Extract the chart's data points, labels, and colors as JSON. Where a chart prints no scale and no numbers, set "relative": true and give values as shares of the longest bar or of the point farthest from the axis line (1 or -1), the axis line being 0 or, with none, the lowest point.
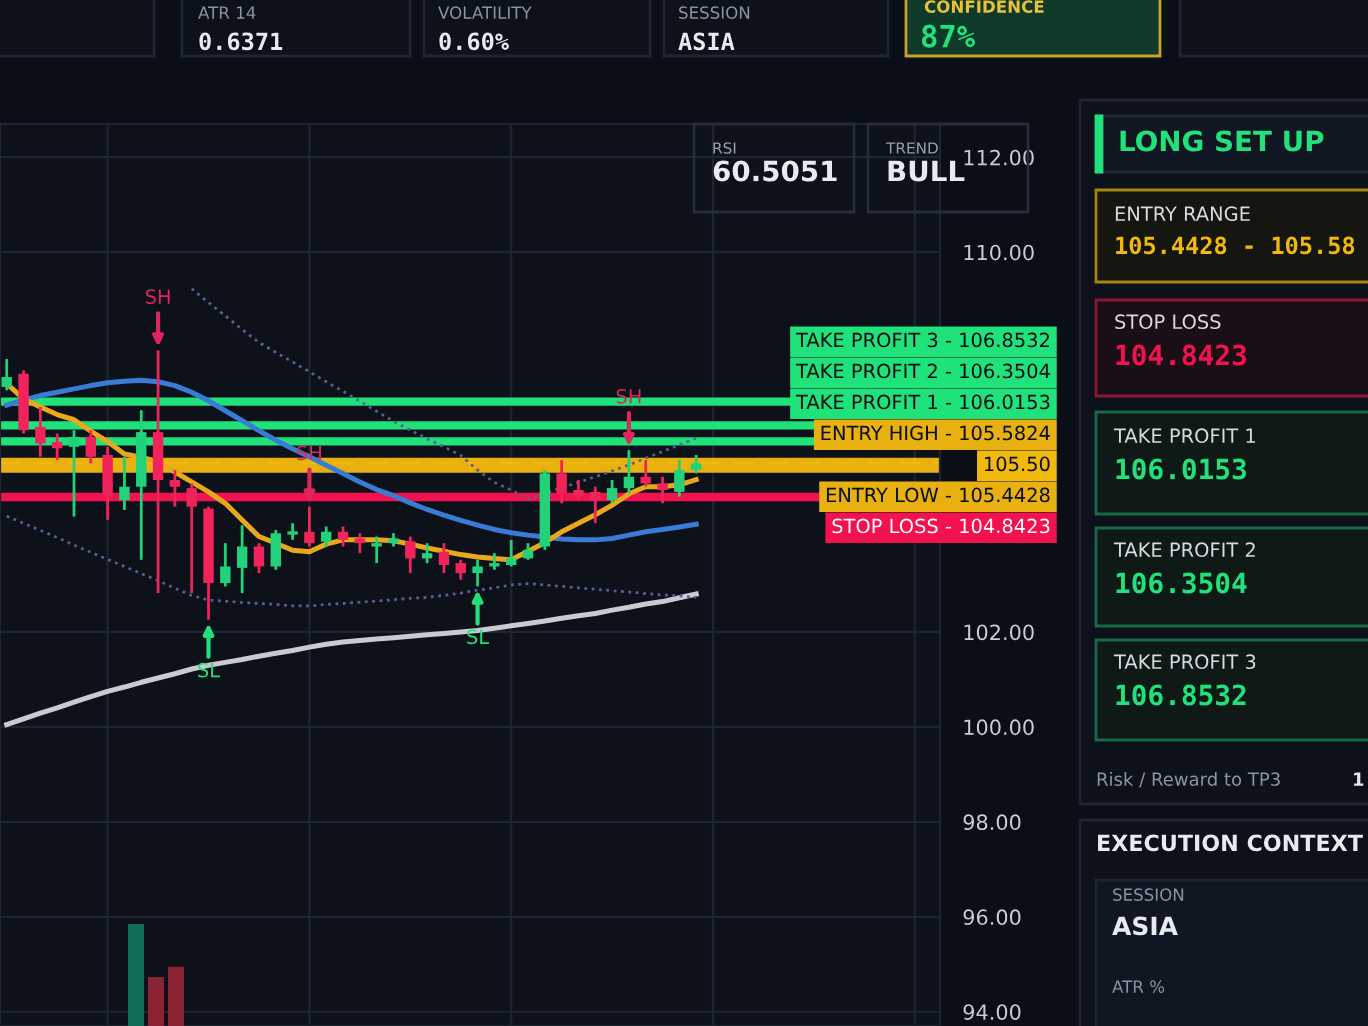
{
  "chart_data": [
    {
      "type": "candlestick",
      "categories": [
        null,
        null,
        null,
        null,
        null,
        null,
        null,
        null,
        null,
        null,
        null,
        null,
        null,
        null,
        null,
        null,
        null,
        null,
        null,
        null,
        null,
        null,
        null,
        null,
        null,
        null,
        null,
        null,
        null,
        null,
        null,
        null,
        null,
        null,
        null,
        null,
        null,
        null,
        null,
        null,
        null,
        null
      ],
      "ohlc": [
        [
          107.16,
          107.75,
          107.09,
          107.37
        ],
        [
          107.44,
          107.51,
          106.18,
          106.25
        ],
        [
          106.32,
          106.74,
          105.69,
          105.97
        ],
        [
          106.0,
          106.18,
          105.62,
          105.87
        ],
        [
          105.9,
          106.25,
          104.43,
          106.11
        ],
        [
          106.11,
          106.25,
          105.55,
          105.69
        ],
        [
          105.73,
          105.9,
          104.36,
          104.85
        ],
        [
          104.78,
          105.69,
          104.57,
          105.06
        ],
        [
          105.06,
          106.67,
          103.52,
          106.21
        ],
        [
          106.21,
          107.93,
          102.82,
          105.2
        ],
        [
          105.2,
          105.41,
          104.64,
          105.06
        ],
        [
          105.03,
          105.13,
          102.82,
          104.64
        ],
        [
          104.6,
          104.64,
          102.26,
          103.03
        ],
        [
          103.03,
          103.87,
          102.96,
          103.38
        ],
        [
          103.35,
          104.25,
          102.82,
          103.8
        ],
        [
          103.8,
          103.87,
          103.24,
          103.38
        ],
        [
          103.38,
          104.15,
          103.31,
          104.08
        ],
        [
          104.05,
          104.29,
          103.94,
          104.12
        ],
        [
          104.11,
          104.64,
          103.8,
          103.87
        ],
        [
          103.9,
          104.22,
          103.8,
          104.11
        ],
        [
          104.11,
          104.22,
          103.8,
          103.94
        ],
        [
          103.97,
          104.08,
          103.66,
          103.87
        ],
        [
          103.8,
          104.01,
          103.45,
          103.87
        ],
        [
          103.87,
          104.08,
          103.8,
          103.97
        ],
        [
          103.91,
          104.01,
          103.24,
          103.55
        ],
        [
          103.55,
          103.87,
          103.45,
          103.66
        ],
        [
          103.69,
          103.87,
          103.24,
          103.41
        ],
        [
          103.45,
          103.52,
          103.1,
          103.24
        ],
        [
          103.24,
          103.52,
          102.96,
          103.38
        ],
        [
          103.38,
          103.66,
          103.31,
          103.45
        ],
        [
          103.41,
          103.94,
          103.38,
          103.55
        ],
        [
          103.55,
          103.87,
          103.52,
          103.73
        ],
        [
          103.8,
          105.41,
          103.73,
          105.34
        ],
        [
          105.34,
          105.62,
          104.71,
          104.92
        ],
        [
          104.99,
          105.2,
          104.78,
          104.85
        ],
        [
          104.95,
          105.06,
          104.29,
          104.78
        ],
        [
          104.78,
          105.2,
          104.71,
          105.03
        ],
        [
          105.03,
          105.83,
          104.92,
          105.27
        ],
        [
          105.27,
          105.62,
          105.06,
          105.13
        ],
        [
          105.13,
          105.27,
          104.71,
          104.99
        ],
        [
          104.95,
          105.62,
          104.85,
          105.41
        ],
        [
          105.41,
          105.73,
          105.34,
          105.55
        ]
      ],
      "colors": [
        "#22d17a",
        "#f0245a",
        "#f0245a",
        "#f0245a",
        "#22d17a",
        "#f0245a",
        "#f0245a",
        "#22d17a",
        "#22d17a",
        "#f0245a",
        "#f0245a",
        "#f0245a",
        "#f0245a",
        "#22d17a",
        "#22d17a",
        "#f0245a",
        "#22d17a",
        "#22d17a",
        "#f0245a",
        "#22d17a",
        "#f0245a",
        "#f0245a",
        "#22d17a",
        "#22d17a",
        "#f0245a",
        "#22d17a",
        "#f0245a",
        "#f0245a",
        "#22d17a",
        "#22d17a",
        "#22d17a",
        "#22d17a",
        "#22d17a",
        "#f0245a",
        "#f0245a",
        "#f0245a",
        "#22d17a",
        "#22d17a",
        "#f0245a",
        "#f0245a",
        "#22d17a",
        "#22d17a"
      ],
      "series": [
        {
          "type": "line",
          "line_style": "solid",
          "color": "#3a7bd5",
          "values": [
            106.78,
            106.89,
            106.98,
            107.05,
            107.12,
            107.19,
            107.25,
            107.28,
            107.3,
            107.27,
            107.19,
            107.05,
            106.87,
            106.66,
            106.45,
            106.24,
            106.04,
            105.86,
            105.69,
            105.51,
            105.34,
            105.16,
            105.0,
            104.87,
            104.72,
            104.58,
            104.46,
            104.35,
            104.25,
            104.16,
            104.09,
            104.04,
            104.0,
            103.96,
            103.94,
            103.94,
            103.97,
            104.04,
            104.11,
            104.16,
            104.21,
            104.27
          ]
        },
        {
          "type": "line",
          "line_style": "solid",
          "color": "#e9a81c",
          "values": [
            107.23,
            106.91,
            106.74,
            106.58,
            106.47,
            106.23,
            106.01,
            105.75,
            105.68,
            105.58,
            105.37,
            105.16,
            104.95,
            104.71,
            104.36,
            104.01,
            103.87,
            103.72,
            103.69,
            103.85,
            103.94,
            103.94,
            103.94,
            103.92,
            103.85,
            103.77,
            103.7,
            103.63,
            103.58,
            103.55,
            103.52,
            103.7,
            103.88,
            104.11,
            104.29,
            104.47,
            104.67,
            104.91,
            105.06,
            105.06,
            105.1,
            105.21
          ]
        },
        {
          "type": "line",
          "line_style": "solid",
          "color": "#c9cbd0",
          "values": [
            100.05,
            100.17,
            100.29,
            100.4,
            100.52,
            100.64,
            100.75,
            100.84,
            100.94,
            101.03,
            101.12,
            101.22,
            101.3,
            101.36,
            101.42,
            101.49,
            101.55,
            101.61,
            101.68,
            101.74,
            101.79,
            101.82,
            101.85,
            101.88,
            101.91,
            101.94,
            101.97,
            102.0,
            102.03,
            102.08,
            102.13,
            102.18,
            102.23,
            102.29,
            102.34,
            102.39,
            102.46,
            102.52,
            102.59,
            102.64,
            102.72,
            102.8
          ]
        },
        {
          "type": "line",
          "line_style": "dotted",
          "color": "#5b5f93",
          "values": [
            104.44,
            104.29,
            104.14,
            103.99,
            103.83,
            103.68,
            103.53,
            103.38,
            103.23,
            103.08,
            102.92,
            102.77,
            102.67,
            102.65,
            102.62,
            102.6,
            102.58,
            102.55,
            102.55,
            102.58,
            102.6,
            102.63,
            102.65,
            102.68,
            102.71,
            102.73,
            102.77,
            102.82,
            102.88,
            102.93,
            102.99,
            103.02,
            102.99,
            102.96,
            102.93,
            102.9,
            102.87,
            102.84,
            102.81,
            102.78,
            102.76,
            102.73
          ]
        },
        {
          "type": "line",
          "line_style": "dotted",
          "color": "#5b5f93",
          "values": [
            null,
            null,
            null,
            null,
            null,
            null,
            null,
            null,
            null,
            null,
            null,
            109.23,
            108.94,
            108.66,
            108.37,
            108.1,
            107.89,
            107.69,
            107.48,
            107.27,
            107.07,
            106.86,
            106.65,
            106.44,
            106.25,
            106.07,
            105.9,
            105.72,
            105.41,
            105.15,
            104.99,
            104.8,
            104.92,
            105.04,
            105.15,
            105.27,
            105.39,
            105.52,
            105.66,
            105.8,
            105.94,
            106.08
          ]
        }
      ],
      "ref_lines": [
        {
          "axis": "y",
          "value": 106.8532,
          "label": "TAKE PROFIT 3 - 106.8532",
          "color": "#1fe27a",
          "line_style": "solid"
        },
        {
          "axis": "y",
          "value": 106.3504,
          "label": "TAKE PROFIT 2 - 106.3504",
          "color": "#1fe27a",
          "line_style": "solid"
        },
        {
          "axis": "y",
          "value": 106.0153,
          "label": "TAKE PROFIT 1 - 106.0153",
          "color": "#1fe27a",
          "line_style": "solid"
        },
        {
          "axis": "y",
          "value": 105.5824,
          "label": "ENTRY HIGH - 105.5824",
          "color": "#e9b10f",
          "line_style": "solid"
        },
        {
          "axis": "y",
          "value": 105.5,
          "label": "105.50",
          "color": "#f0b90b",
          "line_style": "dashed"
        },
        {
          "axis": "y",
          "value": 105.4428,
          "label": "ENTRY LOW - 105.4428",
          "color": "#e9b10f",
          "line_style": "solid"
        },
        {
          "axis": "y",
          "value": 104.8423,
          "label": "STOP LOSS - 104.8423",
          "color": "#f2124f",
          "line_style": "solid"
        }
      ],
      "annotations": [
        {
          "text": "SH",
          "y": 107.93
        },
        {
          "text": "SH",
          "y": 104.64
        },
        {
          "text": "SH",
          "y": 105.83
        },
        {
          "text": "SL",
          "y": 102.26
        },
        {
          "text": "SL",
          "y": 102.96
        }
      ],
      "ylim": [
        93.7,
        112.7
      ],
      "yticks": [
        {
          "value": 94,
          "label": "94.00"
        },
        {
          "value": 96,
          "label": "96.00"
        },
        {
          "value": 98,
          "label": "98.00"
        },
        {
          "value": 100,
          "label": "100.00"
        },
        {
          "value": 102,
          "label": "102.00"
        },
        {
          "value": 110,
          "label": "110.00"
        },
        {
          "value": 112,
          "label": "112.00"
        }
      ],
      "grid": true,
      "tick_labels": "y"
    },
    {
      "type": "bar",
      "relative": true,
      "categories": [
        null,
        null,
        null
      ],
      "values": [
        1,
        0.48,
        0.58
      ],
      "colors": [
        "#0f6e55",
        "#8b2335",
        "#8b2335"
      ]
    },
    {
      "type": "other",
      "annotations": [
        "ATR 14",
        "0.6371",
        "VOLATILITY",
        "0.60%",
        "SESSION",
        "ASIA",
        "CONFIDENCE",
        "87%",
        "RSI",
        "60.5051",
        "TREND",
        "BULL",
        "LONG SET UP",
        "ENTRY RANGE",
        "105.4428 - 105.58",
        "STOP LOSS",
        "104.8423",
        "TAKE PROFIT 1",
        "106.0153",
        "TAKE PROFIT 2",
        "106.3504",
        "TAKE PROFIT 3",
        "106.8532",
        "Risk / Reward to TP3",
        "1",
        "EXECUTION CONTEXT",
        "SESSION",
        "ASIA",
        "ATR %"
      ]
    }
  ]
}
